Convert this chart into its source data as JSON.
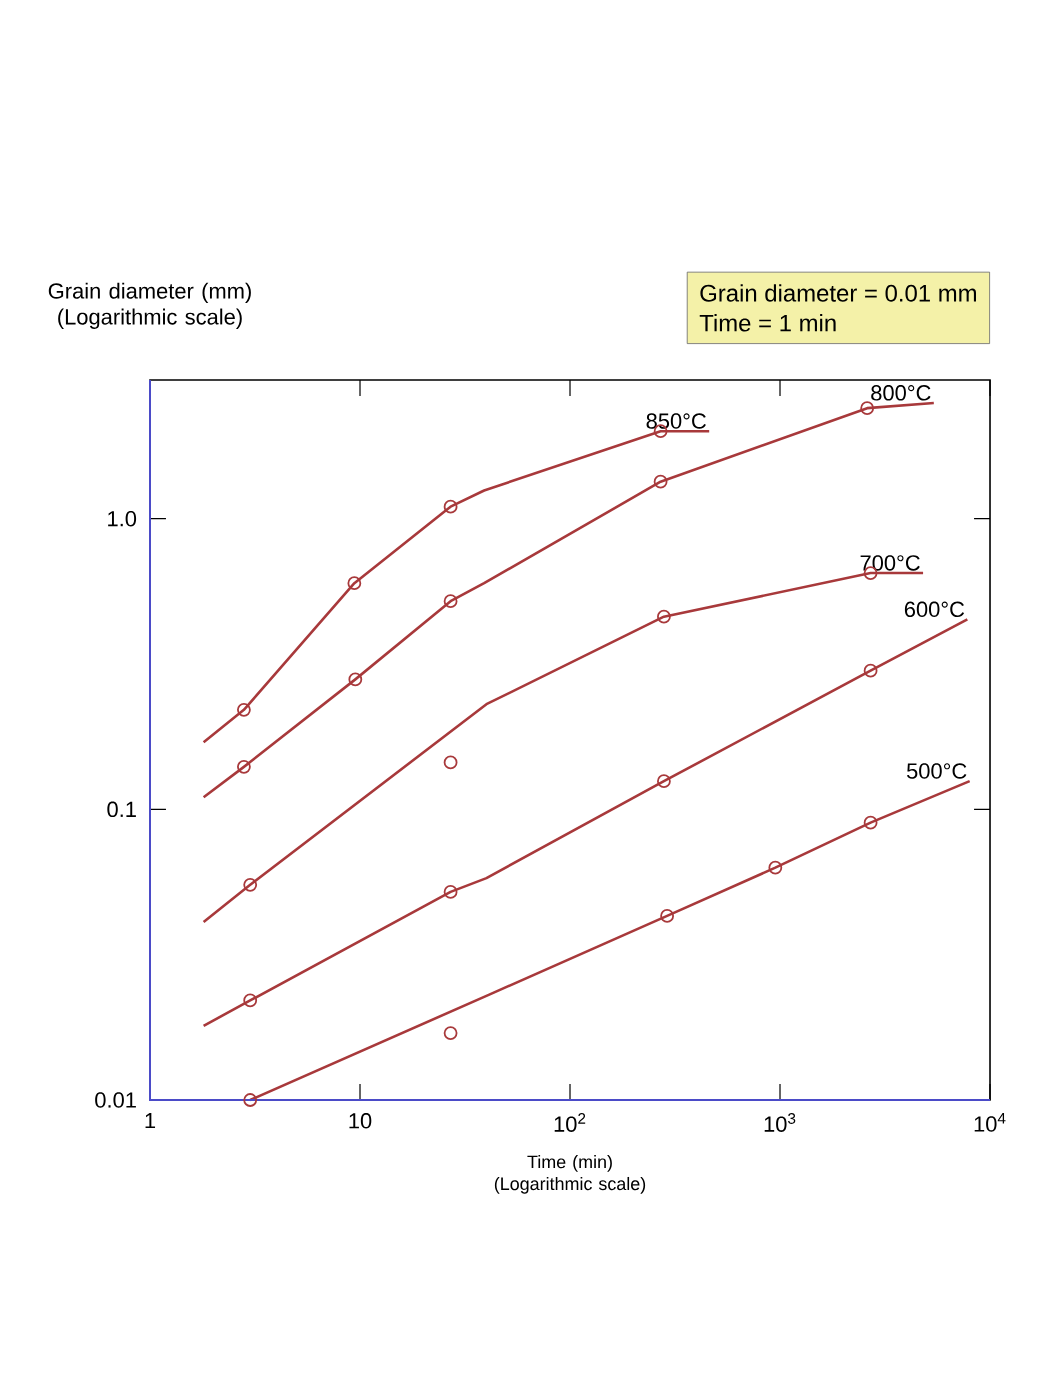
{
  "chart_data": {
    "type": "line",
    "xlabel": "Time (min) (Logarithmic scale)",
    "ylabel": "Grain diameter (mm) (Logarithmic scale)",
    "log": "xy",
    "grid": false,
    "xlim": [
      1,
      10000
    ],
    "ylim": [
      0.01,
      3
    ],
    "xticks": [
      1,
      10,
      {
        "value": 100,
        "label": "10$^{2}$"
      },
      {
        "value": 1000,
        "label": "10$^{3}$"
      },
      {
        "value": 10000,
        "label": "10$^{4}$"
      }
    ],
    "yticks": [
      0.01,
      0.1,
      {
        "value": 1,
        "label": "1.0"
      }
    ],
    "series": [
      {
        "name": "850°C",
        "marker": "none",
        "color": "#a8393b",
        "x": [
          1.8,
          2.8,
          9.4,
          27,
          39,
          270,
          460
        ],
        "values": [
          0.17,
          0.22,
          0.6,
          1.1,
          1.25,
          2.0,
          2.0
        ]
      },
      {
        "type": "scatter",
        "marker": "circle",
        "color": "#a8393b",
        "x": [
          2.8,
          9.4,
          27,
          270
        ],
        "values": [
          0.22,
          0.6,
          1.1,
          2.0
        ]
      },
      {
        "name": "800°C",
        "marker": "none",
        "color": "#a8393b",
        "x": [
          1.8,
          2.8,
          9.5,
          27,
          39,
          270,
          2600,
          5400
        ],
        "values": [
          0.11,
          0.14,
          0.28,
          0.52,
          0.6,
          1.34,
          2.4,
          2.5
        ]
      },
      {
        "type": "scatter",
        "marker": "circle",
        "color": "#a8393b",
        "x": [
          2.8,
          9.5,
          27,
          270,
          2600
        ],
        "values": [
          0.14,
          0.28,
          0.52,
          1.34,
          2.4
        ]
      },
      {
        "name": "700°C",
        "marker": "none",
        "color": "#a8393b",
        "x": [
          1.8,
          3.0,
          40,
          280,
          2700,
          4800
        ],
        "values": [
          0.041,
          0.055,
          0.23,
          0.46,
          0.65,
          0.65
        ]
      },
      {
        "type": "scatter",
        "marker": "circle",
        "color": "#a8393b",
        "x": [
          3.0,
          27,
          280,
          2700
        ],
        "values": [
          0.055,
          0.145,
          0.46,
          0.65
        ]
      },
      {
        "name": "600°C",
        "marker": "none",
        "color": "#a8393b",
        "x": [
          1.8,
          3.0,
          27,
          40,
          280,
          2700,
          7800
        ],
        "values": [
          0.018,
          0.022,
          0.052,
          0.058,
          0.125,
          0.3,
          0.45
        ]
      },
      {
        "type": "scatter",
        "marker": "circle",
        "color": "#a8393b",
        "x": [
          3.0,
          27,
          280,
          2700
        ],
        "values": [
          0.022,
          0.052,
          0.125,
          0.3
        ]
      },
      {
        "name": "500°C",
        "marker": "none",
        "color": "#a8393b",
        "x": [
          3.0,
          41,
          290,
          950,
          2700,
          8000
        ],
        "values": [
          0.01,
          0.023,
          0.043,
          0.063,
          0.09,
          0.125
        ]
      },
      {
        "type": "scatter",
        "marker": "circle",
        "color": "#a8393b",
        "x": [
          3.0,
          27,
          290,
          950,
          2700
        ],
        "values": [
          0.01,
          0.017,
          0.043,
          0.063,
          0.09
        ]
      }
    ],
    "annotations": [
      "Grain diameter = 0.01 mm",
      "Time = 1 min"
    ]
  }
}
